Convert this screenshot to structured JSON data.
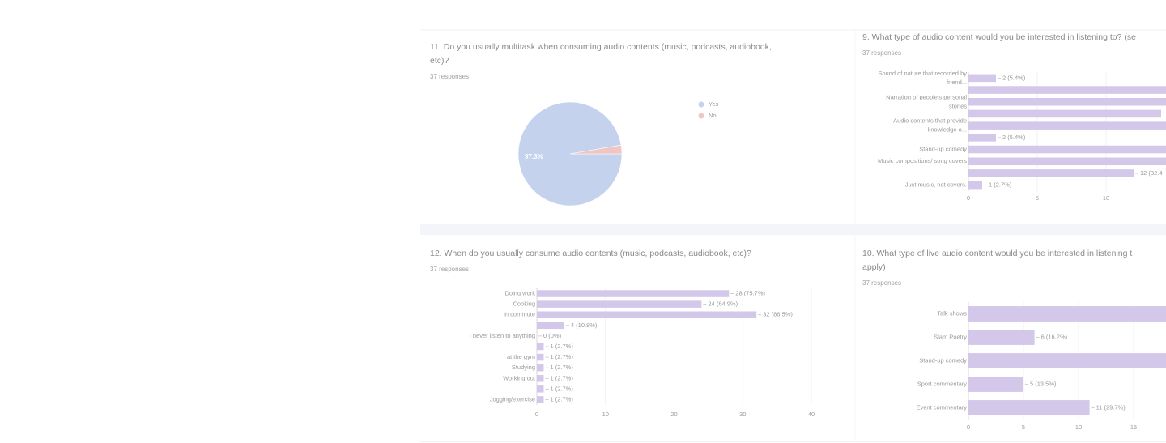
{
  "chart_data": [
    {
      "type": "pie",
      "title": [
        "11. Do you usually multitask when consuming audio contents (music, podcasts, audiobook,",
        "etc)?"
      ],
      "subtitle": "37 responses",
      "categories": [
        "Yes",
        "No"
      ],
      "values": [
        97.3,
        2.7
      ],
      "value_labels": [
        "97.3%",
        null
      ],
      "colors": [
        "#c5d2ee",
        "#f0c6c2"
      ],
      "legend": "right"
    },
    {
      "type": "bar",
      "orientation": "horizontal",
      "title": [
        "9. What type of audio content would you be interested in listening to? (se"
      ],
      "subtitle": "37 responses",
      "categories": [
        "Sound of nature that recorded by friend...",
        null,
        "Narration of people's personal stories",
        null,
        "Audio contents that provide knowledge o...",
        null,
        "Stand-up comedy",
        "Music compositions/ song covers",
        null,
        "Just music, not covers."
      ],
      "values": [
        2,
        16,
        18,
        14,
        20,
        2,
        17,
        19,
        12,
        1
      ],
      "value_labels": [
        "2 (5.4%)",
        null,
        null,
        null,
        null,
        "2 (5.4%)",
        null,
        null,
        "12 (32.4",
        "1 (2.7%)"
      ],
      "color": "#d3c7ea",
      "xlim": [
        0,
        20
      ],
      "xticks": [
        0,
        5,
        10,
        15,
        20
      ],
      "grid": true
    },
    {
      "type": "bar",
      "orientation": "horizontal",
      "title": [
        "12. When do you usually consume audio contents (music, podcasts, audiobook, etc)?"
      ],
      "subtitle": "37 responses",
      "categories": [
        "Doing work",
        "Cooking",
        "In commute",
        null,
        "I never listen to anything",
        null,
        "at the gym",
        "Studying",
        "Working out",
        null,
        "Jogging/exercise"
      ],
      "values": [
        28,
        24,
        32,
        4,
        0,
        1,
        1,
        1,
        1,
        1,
        1
      ],
      "value_labels": [
        "28 (75.7%)",
        "24 (64.9%)",
        "32 (86.5%)",
        "4 (10.8%)",
        "0 (0%)",
        "1 (2.7%)",
        "1 (2.7%)",
        "1 (2.7%)",
        "1 (2.7%)",
        "1 (2.7%)",
        "1 (2.7%)"
      ],
      "color": "#d3c7ea",
      "xlim": [
        0,
        40
      ],
      "xticks": [
        0,
        10,
        20,
        30,
        40
      ],
      "grid": true
    },
    {
      "type": "bar",
      "orientation": "horizontal",
      "title": [
        "10. What type of live audio content would you be interested in listening t",
        "apply)"
      ],
      "subtitle": "37 responses",
      "categories": [
        "Talk shows",
        "Slam Poetry",
        "Stand-up comedy",
        "Sport commentary",
        "Event commentary"
      ],
      "values": [
        20,
        6,
        19,
        5,
        11
      ],
      "value_labels": [
        null,
        "6 (16.2%)",
        null,
        "5 (13.5%)",
        "11 (29.7%)"
      ],
      "color": "#d3c7ea",
      "xlim": [
        0,
        20
      ],
      "xticks": [
        0,
        5,
        10,
        15,
        20
      ],
      "grid": true
    }
  ]
}
